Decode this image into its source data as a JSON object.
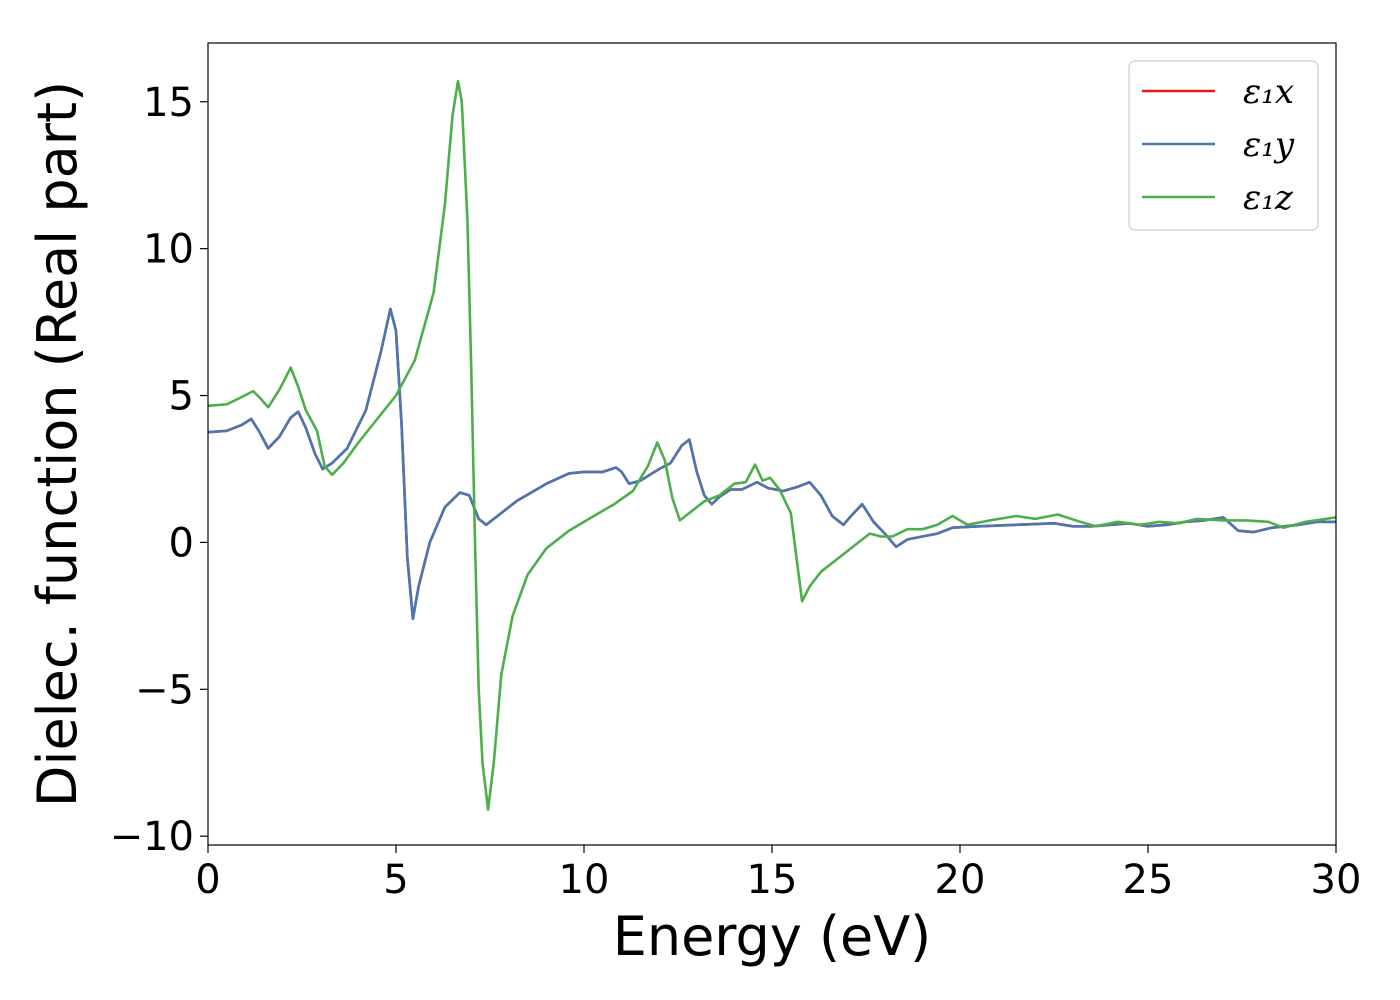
{
  "chart_data": {
    "type": "line",
    "xlabel": "Energy (eV)",
    "ylabel": "Dielec. function (Real part)",
    "xlim": [
      0,
      30
    ],
    "ylim": [
      -10.3,
      17
    ],
    "xticks": [
      0,
      5,
      10,
      15,
      20,
      25,
      30
    ],
    "yticks": [
      -10,
      -5,
      0,
      5,
      10,
      15
    ],
    "ytick_labels": [
      "−10",
      "−5",
      "0",
      "5",
      "10",
      "15"
    ],
    "legend_position": "top-right",
    "series": [
      {
        "name": "ε₁x",
        "color": "#e41a1c",
        "points": [
          [
            0,
            3.75
          ],
          [
            0.5,
            3.8
          ],
          [
            0.9,
            4.0
          ],
          [
            1.15,
            4.2
          ],
          [
            1.35,
            3.8
          ],
          [
            1.6,
            3.2
          ],
          [
            1.9,
            3.6
          ],
          [
            2.2,
            4.25
          ],
          [
            2.4,
            4.45
          ],
          [
            2.6,
            3.9
          ],
          [
            2.85,
            3.0
          ],
          [
            3.05,
            2.5
          ],
          [
            3.3,
            2.7
          ],
          [
            3.7,
            3.2
          ],
          [
            4.2,
            4.5
          ],
          [
            4.6,
            6.5
          ],
          [
            4.85,
            7.95
          ],
          [
            5.0,
            7.2
          ],
          [
            5.15,
            4.0
          ],
          [
            5.3,
            -0.5
          ],
          [
            5.45,
            -2.6
          ],
          [
            5.6,
            -1.5
          ],
          [
            5.9,
            0.0
          ],
          [
            6.3,
            1.2
          ],
          [
            6.7,
            1.7
          ],
          [
            6.95,
            1.6
          ],
          [
            7.2,
            0.8
          ],
          [
            7.4,
            0.6
          ],
          [
            7.7,
            0.9
          ],
          [
            8.2,
            1.4
          ],
          [
            9.0,
            2.0
          ],
          [
            9.6,
            2.35
          ],
          [
            10.0,
            2.4
          ],
          [
            10.5,
            2.4
          ],
          [
            10.85,
            2.55
          ],
          [
            11.0,
            2.4
          ],
          [
            11.2,
            2.0
          ],
          [
            11.5,
            2.1
          ],
          [
            12.0,
            2.5
          ],
          [
            12.3,
            2.7
          ],
          [
            12.6,
            3.3
          ],
          [
            12.8,
            3.5
          ],
          [
            13.0,
            2.4
          ],
          [
            13.2,
            1.6
          ],
          [
            13.4,
            1.3
          ],
          [
            13.6,
            1.55
          ],
          [
            13.9,
            1.8
          ],
          [
            14.2,
            1.8
          ],
          [
            14.6,
            2.05
          ],
          [
            14.9,
            1.85
          ],
          [
            15.3,
            1.75
          ],
          [
            15.7,
            1.9
          ],
          [
            16.0,
            2.05
          ],
          [
            16.3,
            1.6
          ],
          [
            16.6,
            0.9
          ],
          [
            16.9,
            0.6
          ],
          [
            17.1,
            0.9
          ],
          [
            17.4,
            1.3
          ],
          [
            17.7,
            0.7
          ],
          [
            18.0,
            0.3
          ],
          [
            18.3,
            -0.15
          ],
          [
            18.6,
            0.1
          ],
          [
            19.0,
            0.2
          ],
          [
            19.4,
            0.3
          ],
          [
            19.8,
            0.5
          ],
          [
            20.5,
            0.55
          ],
          [
            21.5,
            0.6
          ],
          [
            22.5,
            0.65
          ],
          [
            23.0,
            0.55
          ],
          [
            23.5,
            0.55
          ],
          [
            24.0,
            0.6
          ],
          [
            24.5,
            0.65
          ],
          [
            25.0,
            0.55
          ],
          [
            25.5,
            0.6
          ],
          [
            26.0,
            0.7
          ],
          [
            26.5,
            0.75
          ],
          [
            27.0,
            0.85
          ],
          [
            27.4,
            0.4
          ],
          [
            27.8,
            0.35
          ],
          [
            28.3,
            0.5
          ],
          [
            29.0,
            0.6
          ],
          [
            29.5,
            0.7
          ],
          [
            30.0,
            0.7
          ]
        ]
      },
      {
        "name": "ε₁y",
        "color": "#4a77b0",
        "points": [
          [
            0,
            3.75
          ],
          [
            0.5,
            3.8
          ],
          [
            0.9,
            4.0
          ],
          [
            1.15,
            4.2
          ],
          [
            1.35,
            3.8
          ],
          [
            1.6,
            3.2
          ],
          [
            1.9,
            3.6
          ],
          [
            2.2,
            4.25
          ],
          [
            2.4,
            4.45
          ],
          [
            2.6,
            3.9
          ],
          [
            2.85,
            3.0
          ],
          [
            3.05,
            2.5
          ],
          [
            3.3,
            2.7
          ],
          [
            3.7,
            3.2
          ],
          [
            4.2,
            4.5
          ],
          [
            4.6,
            6.5
          ],
          [
            4.85,
            7.95
          ],
          [
            5.0,
            7.2
          ],
          [
            5.15,
            4.0
          ],
          [
            5.3,
            -0.5
          ],
          [
            5.45,
            -2.6
          ],
          [
            5.6,
            -1.5
          ],
          [
            5.9,
            0.0
          ],
          [
            6.3,
            1.2
          ],
          [
            6.7,
            1.7
          ],
          [
            6.95,
            1.6
          ],
          [
            7.2,
            0.8
          ],
          [
            7.4,
            0.6
          ],
          [
            7.7,
            0.9
          ],
          [
            8.2,
            1.4
          ],
          [
            9.0,
            2.0
          ],
          [
            9.6,
            2.35
          ],
          [
            10.0,
            2.4
          ],
          [
            10.5,
            2.4
          ],
          [
            10.85,
            2.55
          ],
          [
            11.0,
            2.4
          ],
          [
            11.2,
            2.0
          ],
          [
            11.5,
            2.1
          ],
          [
            12.0,
            2.5
          ],
          [
            12.3,
            2.7
          ],
          [
            12.6,
            3.3
          ],
          [
            12.8,
            3.5
          ],
          [
            13.0,
            2.4
          ],
          [
            13.2,
            1.6
          ],
          [
            13.4,
            1.3
          ],
          [
            13.6,
            1.55
          ],
          [
            13.9,
            1.8
          ],
          [
            14.2,
            1.8
          ],
          [
            14.6,
            2.05
          ],
          [
            14.9,
            1.85
          ],
          [
            15.3,
            1.75
          ],
          [
            15.7,
            1.9
          ],
          [
            16.0,
            2.05
          ],
          [
            16.3,
            1.6
          ],
          [
            16.6,
            0.9
          ],
          [
            16.9,
            0.6
          ],
          [
            17.1,
            0.9
          ],
          [
            17.4,
            1.3
          ],
          [
            17.7,
            0.7
          ],
          [
            18.0,
            0.3
          ],
          [
            18.3,
            -0.15
          ],
          [
            18.6,
            0.1
          ],
          [
            19.0,
            0.2
          ],
          [
            19.4,
            0.3
          ],
          [
            19.8,
            0.5
          ],
          [
            20.5,
            0.55
          ],
          [
            21.5,
            0.6
          ],
          [
            22.5,
            0.65
          ],
          [
            23.0,
            0.55
          ],
          [
            23.5,
            0.55
          ],
          [
            24.0,
            0.6
          ],
          [
            24.5,
            0.65
          ],
          [
            25.0,
            0.55
          ],
          [
            25.5,
            0.6
          ],
          [
            26.0,
            0.7
          ],
          [
            26.5,
            0.75
          ],
          [
            27.0,
            0.85
          ],
          [
            27.4,
            0.4
          ],
          [
            27.8,
            0.35
          ],
          [
            28.3,
            0.5
          ],
          [
            29.0,
            0.6
          ],
          [
            29.5,
            0.7
          ],
          [
            30.0,
            0.7
          ]
        ]
      },
      {
        "name": "ε₁z",
        "color": "#4daf4a",
        "points": [
          [
            0,
            4.65
          ],
          [
            0.5,
            4.7
          ],
          [
            0.9,
            4.95
          ],
          [
            1.2,
            5.15
          ],
          [
            1.4,
            4.9
          ],
          [
            1.6,
            4.6
          ],
          [
            1.9,
            5.2
          ],
          [
            2.2,
            5.95
          ],
          [
            2.4,
            5.3
          ],
          [
            2.6,
            4.5
          ],
          [
            2.9,
            3.8
          ],
          [
            3.1,
            2.6
          ],
          [
            3.3,
            2.3
          ],
          [
            3.6,
            2.7
          ],
          [
            4.0,
            3.4
          ],
          [
            4.5,
            4.2
          ],
          [
            5.0,
            5.0
          ],
          [
            5.5,
            6.2
          ],
          [
            6.0,
            8.5
          ],
          [
            6.3,
            11.5
          ],
          [
            6.5,
            14.5
          ],
          [
            6.65,
            15.7
          ],
          [
            6.75,
            15.0
          ],
          [
            6.9,
            11.0
          ],
          [
            7.0,
            6.0
          ],
          [
            7.1,
            0.0
          ],
          [
            7.2,
            -5.0
          ],
          [
            7.3,
            -7.5
          ],
          [
            7.45,
            -9.1
          ],
          [
            7.6,
            -7.5
          ],
          [
            7.8,
            -4.5
          ],
          [
            8.1,
            -2.5
          ],
          [
            8.5,
            -1.1
          ],
          [
            9.0,
            -0.2
          ],
          [
            9.6,
            0.4
          ],
          [
            10.2,
            0.85
          ],
          [
            10.8,
            1.3
          ],
          [
            11.3,
            1.75
          ],
          [
            11.7,
            2.6
          ],
          [
            11.95,
            3.4
          ],
          [
            12.15,
            2.8
          ],
          [
            12.35,
            1.5
          ],
          [
            12.55,
            0.75
          ],
          [
            12.8,
            1.0
          ],
          [
            13.2,
            1.4
          ],
          [
            13.6,
            1.6
          ],
          [
            14.0,
            2.0
          ],
          [
            14.3,
            2.05
          ],
          [
            14.55,
            2.65
          ],
          [
            14.75,
            2.1
          ],
          [
            14.95,
            2.2
          ],
          [
            15.2,
            1.8
          ],
          [
            15.5,
            1.0
          ],
          [
            15.65,
            -0.5
          ],
          [
            15.8,
            -2.0
          ],
          [
            16.0,
            -1.5
          ],
          [
            16.3,
            -1.0
          ],
          [
            16.8,
            -0.5
          ],
          [
            17.3,
            0.0
          ],
          [
            17.6,
            0.3
          ],
          [
            17.9,
            0.2
          ],
          [
            18.2,
            0.2
          ],
          [
            18.6,
            0.45
          ],
          [
            19.0,
            0.45
          ],
          [
            19.4,
            0.6
          ],
          [
            19.8,
            0.9
          ],
          [
            20.2,
            0.6
          ],
          [
            20.8,
            0.75
          ],
          [
            21.5,
            0.9
          ],
          [
            22.0,
            0.8
          ],
          [
            22.6,
            0.95
          ],
          [
            23.2,
            0.7
          ],
          [
            23.6,
            0.55
          ],
          [
            24.2,
            0.7
          ],
          [
            24.8,
            0.6
          ],
          [
            25.3,
            0.7
          ],
          [
            25.8,
            0.65
          ],
          [
            26.3,
            0.8
          ],
          [
            27.0,
            0.75
          ],
          [
            27.6,
            0.75
          ],
          [
            28.2,
            0.7
          ],
          [
            28.6,
            0.5
          ],
          [
            29.2,
            0.7
          ],
          [
            30.0,
            0.85
          ]
        ]
      }
    ]
  }
}
